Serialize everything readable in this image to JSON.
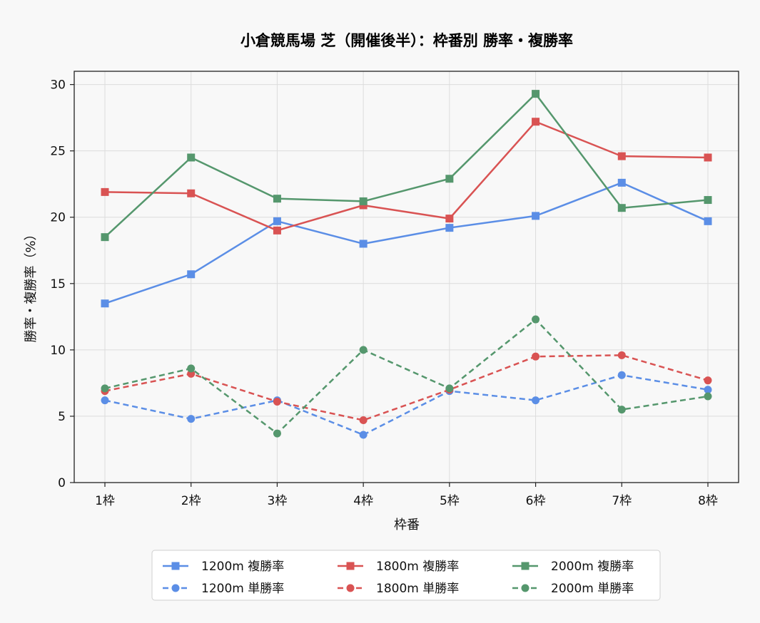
{
  "chart_data": {
    "type": "line",
    "title": "小倉競馬場 芝（開催後半）：枠番別 勝率・複勝率",
    "xlabel": "枠番",
    "ylabel": "勝率・複勝率（%）",
    "categories": [
      "1枠",
      "2枠",
      "3枠",
      "4枠",
      "5枠",
      "6枠",
      "7枠",
      "8枠"
    ],
    "ylim": [
      0,
      31
    ],
    "yticks": [
      0,
      5,
      10,
      15,
      20,
      25,
      30
    ],
    "grid": true,
    "legend_position": "bottom-center",
    "series": [
      {
        "name": "1200m 複勝率",
        "color": "#5b8ee6",
        "line": "solid",
        "marker": "square",
        "values": [
          13.5,
          15.7,
          19.7,
          18.0,
          19.2,
          20.1,
          22.6,
          19.7
        ]
      },
      {
        "name": "1200m 単勝率",
        "color": "#5b8ee6",
        "line": "dashed",
        "marker": "circle",
        "values": [
          6.2,
          4.8,
          6.2,
          3.6,
          6.9,
          6.2,
          8.1,
          7.0
        ]
      },
      {
        "name": "1800m 複勝率",
        "color": "#d95353",
        "line": "solid",
        "marker": "square",
        "values": [
          21.9,
          21.8,
          19.0,
          20.9,
          19.9,
          27.2,
          24.6,
          24.5
        ]
      },
      {
        "name": "1800m 単勝率",
        "color": "#d95353",
        "line": "dashed",
        "marker": "circle",
        "values": [
          6.9,
          8.2,
          6.1,
          4.7,
          7.0,
          9.5,
          9.6,
          7.7
        ]
      },
      {
        "name": "2000m 複勝率",
        "color": "#55976d",
        "line": "solid",
        "marker": "square",
        "values": [
          18.5,
          24.5,
          21.4,
          21.2,
          22.9,
          29.3,
          20.7,
          21.3
        ]
      },
      {
        "name": "2000m 単勝率",
        "color": "#55976d",
        "line": "dashed",
        "marker": "circle",
        "values": [
          7.1,
          8.6,
          3.7,
          10.0,
          7.1,
          12.3,
          5.5,
          6.5
        ]
      }
    ]
  }
}
